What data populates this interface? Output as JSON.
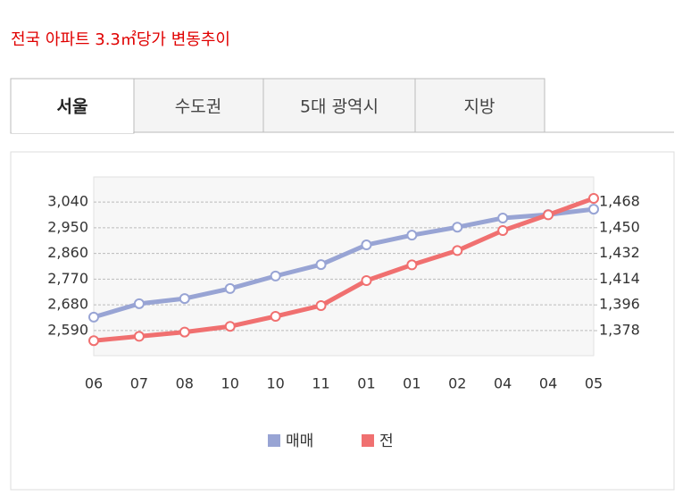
{
  "tabs": [
    "서울",
    "수도권",
    "5대 광역시",
    "지방"
  ],
  "chart_data": {
    "type": "line",
    "title": "전국 아파트 3.3㎡당가 변동추이",
    "categories": [
      "06",
      "07",
      "08",
      "10",
      "10",
      "11",
      "01",
      "01",
      "02",
      "04",
      "04",
      "05"
    ],
    "series": [
      {
        "name": "매매",
        "color": "#98a4d4",
        "values": [
          2637,
          2684,
          2702,
          2737,
          2781,
          2821,
          2890,
          2924,
          2952,
          2984,
          2996,
          3015
        ]
      },
      {
        "name": "전",
        "color": "#f07070",
        "axis": "y2",
        "values": [
          1371,
          1374,
          1377,
          1381,
          1388,
          1395.5,
          1413,
          1424,
          1434,
          1448,
          1459,
          1470.5
        ]
      }
    ],
    "ylim": [
      2502,
      3128
    ],
    "yticks": [
      {
        "value": 2590,
        "label": "2,590"
      },
      {
        "value": 2680,
        "label": "2,680"
      },
      {
        "value": 2770,
        "label": "2,770"
      },
      {
        "value": 2860,
        "label": "2,860"
      },
      {
        "value": 2950,
        "label": "2,950"
      },
      {
        "value": 3040,
        "label": "3,040"
      }
    ],
    "y2lim": [
      1360.5,
      1485.5
    ],
    "y2ticks": [
      {
        "value": 1378,
        "label": "1,378"
      },
      {
        "value": 1396,
        "label": "1,396"
      },
      {
        "value": 1414,
        "label": "1,414"
      },
      {
        "value": 1432,
        "label": "1,432"
      },
      {
        "value": 1450,
        "label": "1,450"
      },
      {
        "value": 1468,
        "label": "1,468"
      }
    ],
    "grid": true,
    "legend": "bottom"
  }
}
